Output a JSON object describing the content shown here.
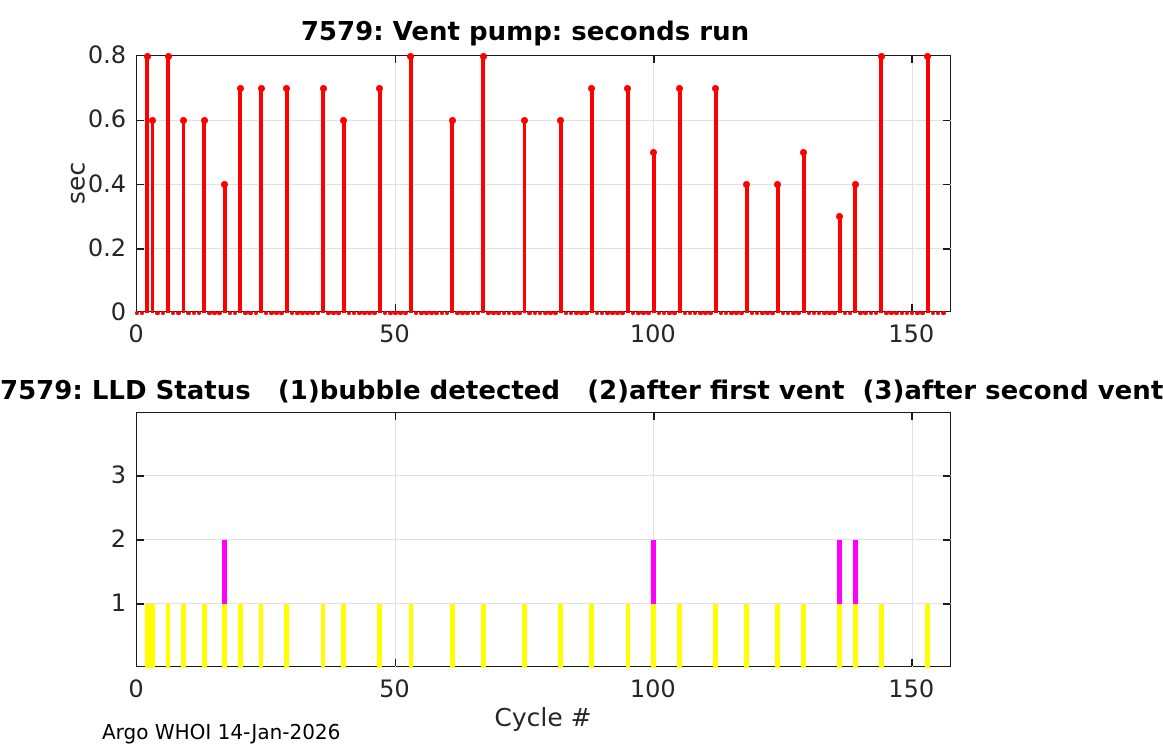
{
  "figure": {
    "footer": "Argo WHOI 14-Jan-2026"
  },
  "colors": {
    "stem": "#ff0000",
    "status_1": "#ffff00",
    "status_2": "#ff00ff",
    "grid": "#e2e2e2",
    "axis": "#1a1a1a",
    "tick_text": "#262626",
    "title_text": "#000000"
  },
  "chart_data": [
    {
      "type": "stem",
      "title": "7579: Vent pump: seconds run",
      "xlabel": "",
      "ylabel": "sec",
      "xlim": [
        0,
        157.7
      ],
      "ylim": [
        0,
        0.8
      ],
      "xticks": [
        0,
        50,
        100,
        150
      ],
      "yticks": [
        0,
        0.2,
        0.4,
        0.6,
        0.8
      ],
      "grid": true,
      "marker": "filled-dot",
      "zero_value_cycle_range": [
        0,
        156
      ],
      "points": [
        [
          2,
          0.8
        ],
        [
          3,
          0.6
        ],
        [
          6,
          0.8
        ],
        [
          9,
          0.6
        ],
        [
          13,
          0.6
        ],
        [
          17,
          0.4
        ],
        [
          20,
          0.7
        ],
        [
          24,
          0.7
        ],
        [
          29,
          0.7
        ],
        [
          36,
          0.7
        ],
        [
          40,
          0.6
        ],
        [
          47,
          0.7
        ],
        [
          53,
          0.8
        ],
        [
          61,
          0.6
        ],
        [
          67,
          0.8
        ],
        [
          75,
          0.6
        ],
        [
          82,
          0.6
        ],
        [
          88,
          0.7
        ],
        [
          95,
          0.7
        ],
        [
          100,
          0.5
        ],
        [
          105,
          0.7
        ],
        [
          112,
          0.7
        ],
        [
          118,
          0.4
        ],
        [
          124,
          0.4
        ],
        [
          129,
          0.5
        ],
        [
          136,
          0.3
        ],
        [
          139,
          0.4
        ],
        [
          144,
          0.8
        ],
        [
          153,
          0.8
        ]
      ]
    },
    {
      "type": "bar",
      "title": "7579: LLD Status   (1)bubble detected   (2)after first vent  (3)after second vent",
      "xlabel": "Cycle #",
      "ylabel": "",
      "xlim": [
        0,
        157.7
      ],
      "ylim": [
        0,
        3.98
      ],
      "xticks": [
        0,
        50,
        100,
        150
      ],
      "yticks": [
        1,
        2,
        3
      ],
      "grid": true,
      "status_legend": {
        "1": "bubble detected",
        "2": "after first vent",
        "3": "after second vent"
      },
      "bars": [
        [
          2,
          1
        ],
        [
          3,
          1
        ],
        [
          6,
          1
        ],
        [
          9,
          1
        ],
        [
          13,
          1
        ],
        [
          17,
          2
        ],
        [
          20,
          1
        ],
        [
          24,
          1
        ],
        [
          29,
          1
        ],
        [
          36,
          1
        ],
        [
          40,
          1
        ],
        [
          47,
          1
        ],
        [
          53,
          1
        ],
        [
          61,
          1
        ],
        [
          67,
          1
        ],
        [
          75,
          1
        ],
        [
          82,
          1
        ],
        [
          88,
          1
        ],
        [
          95,
          1
        ],
        [
          100,
          2
        ],
        [
          105,
          1
        ],
        [
          112,
          1
        ],
        [
          118,
          1
        ],
        [
          124,
          1
        ],
        [
          129,
          1
        ],
        [
          136,
          2
        ],
        [
          139,
          2
        ],
        [
          144,
          1
        ],
        [
          153,
          1
        ]
      ]
    }
  ]
}
